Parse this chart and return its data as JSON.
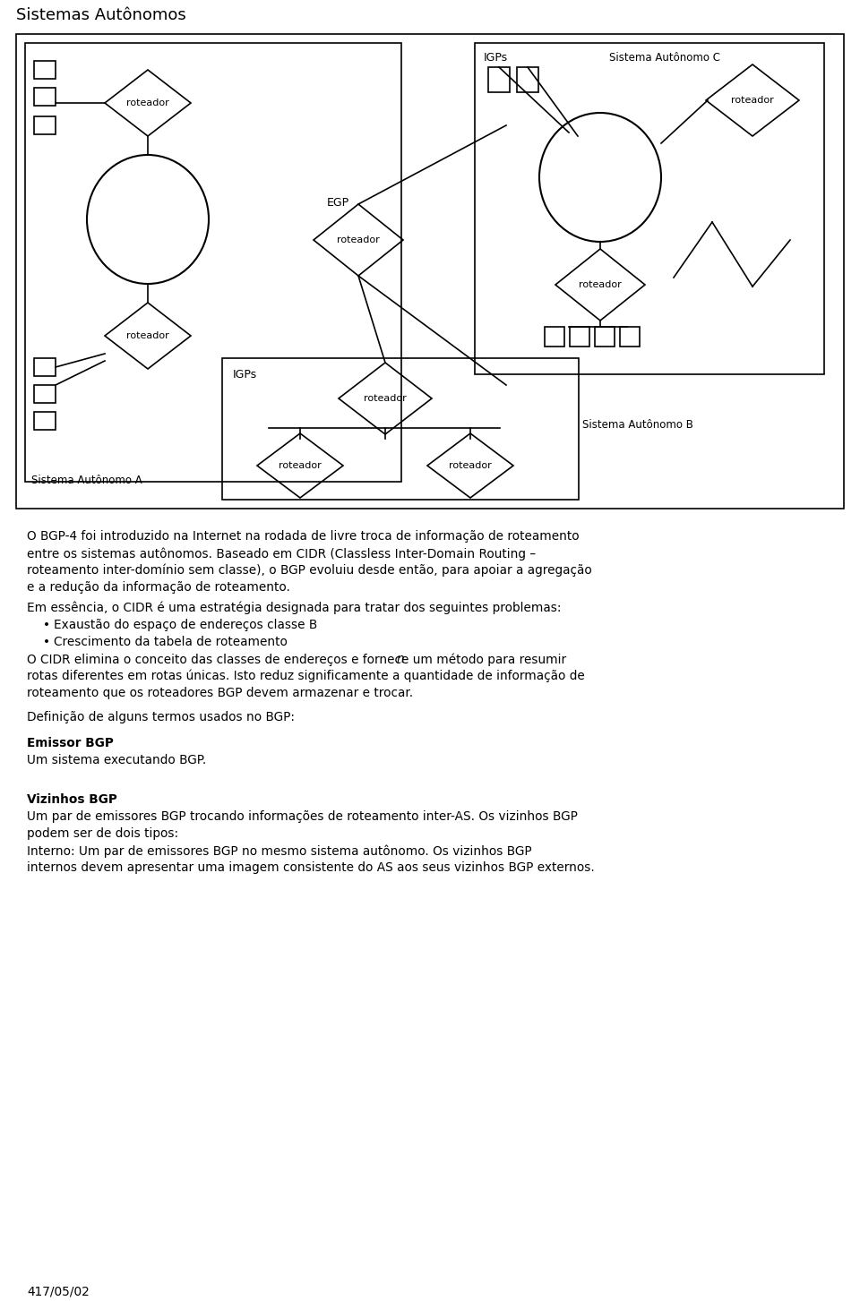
{
  "title": "Sistemas Autônomos",
  "bg_color": "#ffffff",
  "para1": "O BGP-4 foi introduzido na Internet na rodada de livre troca de informação de roteamento\nentre os sistemas autônomos. Baseado em CIDR (Classless Inter-Domain Routing –\nroteamento inter-domínio sem classe), o BGP evoluiu desde então, para apoiar a agregação\ne a redução da informação de roteamento.",
  "para2_prefix": "Em essência, o CIDR é uma estratégia designada para tratar dos seguintes problemas:",
  "bullet1": "Exaustão do espaço de endereços classe B",
  "bullet2": "Crescimento da tabela de roteamento",
  "para3a": "O CIDR elimina o conceito das classes de endereços e fornece um método para resumir ",
  "para3_n": "n",
  "para3b": "rotas diferentes em rotas únicas. Isto reduz significamente a quantidade de informação de\nroteamento que os roteadores BGP devem armazenar e trocar.",
  "para4": "Definição de alguns termos usados no BGP:",
  "bold1": "Emissor BGP",
  "para5": "Um sistema executando BGP.",
  "bold2": "Vizinhos BGP",
  "para6a": "Um par de emissores BGP trocando informações de roteamento inter-AS. Os vizinhos BGP\npodem ser de dois tipos:",
  "para6b": "Interno: Um par de emissores BGP no mesmo sistema autônomo. Os vizinhos BGP\ninternos devem apresentar uma imagem consistente do AS aos seus vizinhos BGP externos.",
  "footer": "417/05/02",
  "label_roteador": "roteador",
  "label_igps": "IGPs",
  "label_egp": "EGP",
  "label_sa_a": "Sistema Autônomo A",
  "label_sa_b": "Sistema Autônomo B",
  "label_sa_c": "Sistema Autônomo C"
}
